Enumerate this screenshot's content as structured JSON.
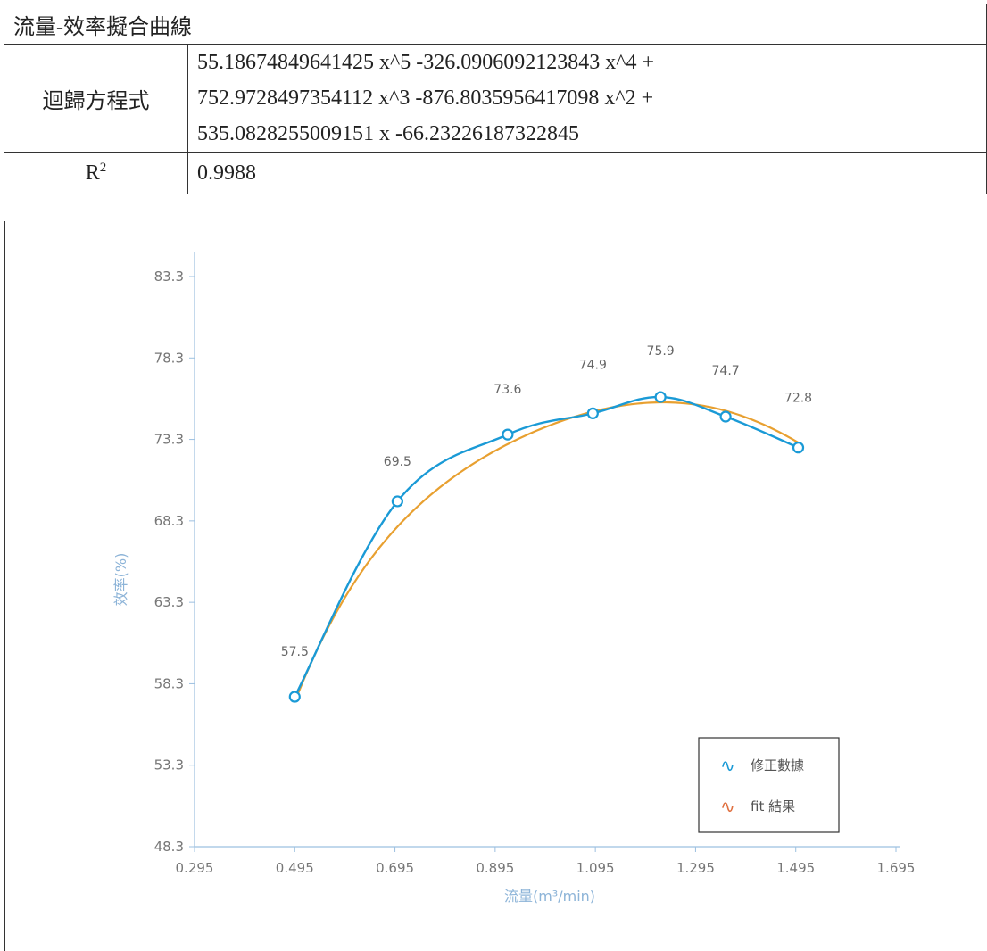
{
  "header": {
    "title": "流量-效率擬合曲線",
    "equation_label": "迴歸方程式",
    "equation_lines": [
      "55.18674849641425 x^5 -326.0906092123843 x^4 +",
      "752.9728497354112 x^3 -876.8035956417098 x^2 +",
      "535.0828255009151 x -66.23226187322845"
    ],
    "r2_label_base": "R",
    "r2_label_sup": "2",
    "r2_value": "0.9988"
  },
  "chart_data": {
    "type": "line",
    "xlabel": "流量(m³/min)",
    "ylabel": "效率(%)",
    "xlim": [
      0.295,
      1.695
    ],
    "ylim": [
      48.3,
      83.3
    ],
    "x_ticks": [
      "0.295",
      "0.495",
      "0.695",
      "0.895",
      "1.095",
      "1.295",
      "1.495",
      "1.695"
    ],
    "y_ticks": [
      "48.3",
      "53.3",
      "58.3",
      "63.3",
      "68.3",
      "73.3",
      "78.3",
      "83.3"
    ],
    "series": [
      {
        "name": "修正數據",
        "color": "#1a9ad6",
        "x": [
          0.495,
          0.7,
          0.92,
          1.09,
          1.225,
          1.355,
          1.5
        ],
        "y": [
          57.5,
          69.5,
          73.6,
          74.9,
          75.9,
          74.7,
          72.8
        ],
        "labels": [
          "57.5",
          "69.5",
          "73.6",
          "74.9",
          "75.9",
          "74.7",
          "72.8"
        ]
      },
      {
        "name": "fit 結果",
        "color": "#e8a030",
        "coefficients": [
          -66.23226187322845,
          535.0828255009151,
          -876.8035956417098,
          752.9728497354112,
          -326.0906092123843,
          55.18674849641425
        ]
      }
    ],
    "legend_position": "bottom-right",
    "grid": false
  }
}
